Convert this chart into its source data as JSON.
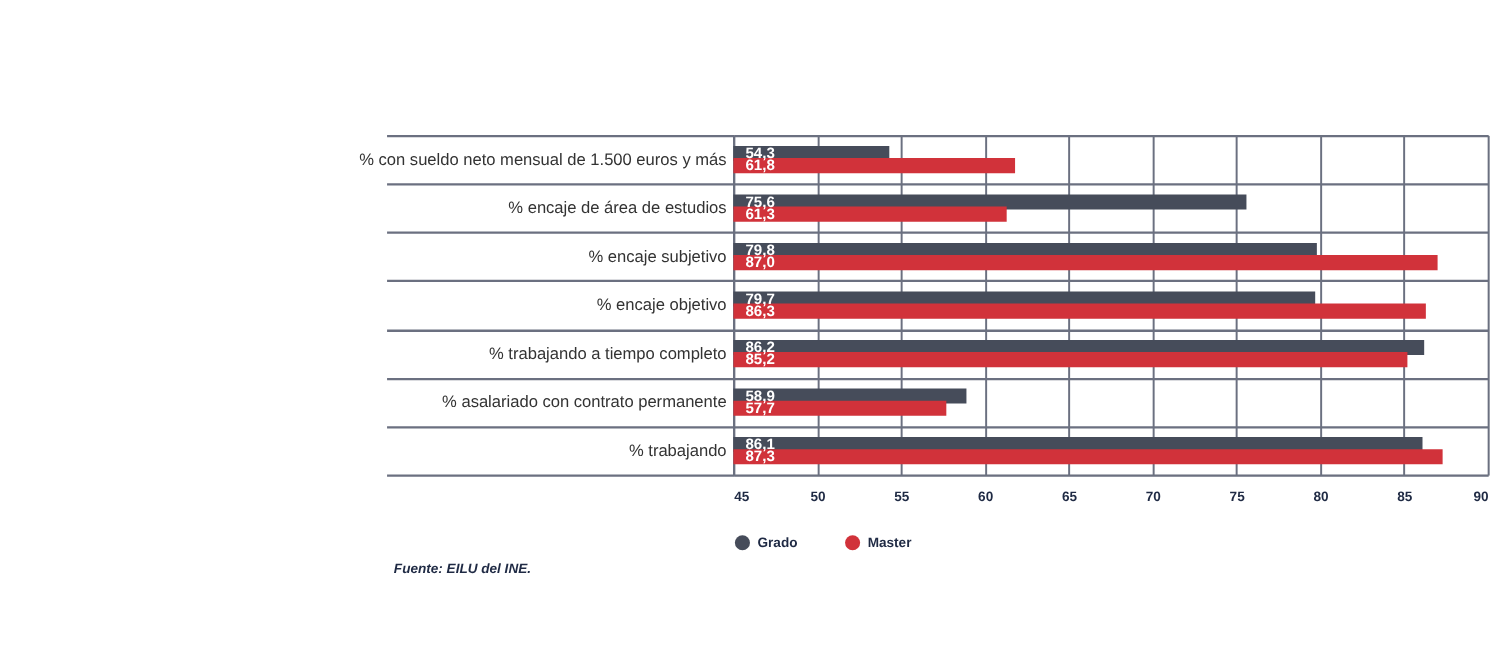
{
  "chart_data": {
    "type": "bar",
    "orientation": "horizontal",
    "categories": [
      "% con sueldo neto mensual de 1.500 euros y más",
      "% encaje de área de estudios",
      "% encaje subjetivo",
      "% encaje objetivo",
      "% trabajando a tiempo completo",
      "% asalariado con contrato permanente",
      "% trabajando"
    ],
    "series": [
      {
        "name": "Grado",
        "color": "#464c5a",
        "values": [
          54.3,
          75.6,
          79.8,
          79.7,
          86.2,
          58.9,
          86.1
        ],
        "value_labels": [
          "54,3",
          "75,6",
          "79,8",
          "79,7",
          "86,2",
          "58,9",
          "86,1"
        ]
      },
      {
        "name": "Master",
        "color": "#d1323a",
        "values": [
          61.8,
          61.3,
          87.0,
          86.3,
          85.2,
          57.7,
          87.3
        ],
        "value_labels": [
          "61,8",
          "61,3",
          "87,0",
          "86,3",
          "85,2",
          "57,7",
          "87,3"
        ]
      }
    ],
    "xlim": [
      45,
      90
    ],
    "xticks": [
      45,
      50,
      55,
      60,
      65,
      70,
      75,
      80,
      85,
      90
    ],
    "grid": true,
    "legend": "bottom left",
    "annotations": [
      "Fuente: EILU del INE."
    ]
  }
}
